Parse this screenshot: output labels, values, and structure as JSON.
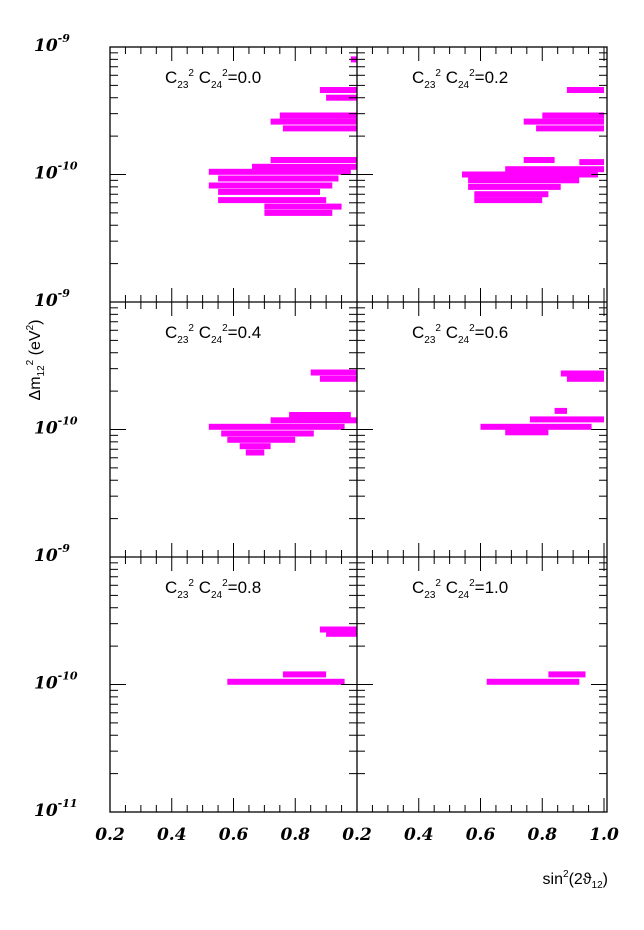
{
  "chart_data": {
    "type": "scatter",
    "layout": "3 rows x 2 columns of panels",
    "xlabel_parts": {
      "base": "sin",
      "sup": "2",
      "mid": "(2ϑ",
      "sub": "12",
      "end": ")"
    },
    "ylabel_parts": {
      "base": "Δm",
      "sub": "12",
      "sup": "2",
      "mid": " (eV",
      "sup2": "2",
      "end": ")"
    },
    "xlim": [
      0.2,
      1.0
    ],
    "ylim": [
      1e-11,
      1e-09
    ],
    "yscale": "log",
    "x_tick_labels": [
      "0.2",
      "0.4",
      "0.6",
      "0.8",
      "0.2",
      "0.4",
      "0.6",
      "0.8",
      "1.0"
    ],
    "y_tick_labels": [
      {
        "base": "10",
        "exp": "-9"
      },
      {
        "base": "10",
        "exp": "-10"
      },
      {
        "base": "10",
        "exp": "-9"
      },
      {
        "base": "10",
        "exp": "-10"
      },
      {
        "base": "10",
        "exp": "-9"
      },
      {
        "base": "10",
        "exp": "-10"
      },
      {
        "base": "10",
        "exp": "-11"
      }
    ],
    "region_color": "#ff00ff",
    "panels": [
      {
        "label": {
          "c1": "C",
          "s1": "23",
          "e1": "2",
          "c2": " C",
          "s2": "24",
          "e2": "2",
          "val": "=0.0"
        },
        "bands": [
          {
            "x": [
              0.98,
              1.0
            ],
            "y": 8e-10
          },
          {
            "x": [
              0.88,
              1.0
            ],
            "y": 4.6e-10
          },
          {
            "x": [
              0.9,
              1.0
            ],
            "y": 4e-10
          },
          {
            "x": [
              0.75,
              1.0
            ],
            "y": 2.9e-10
          },
          {
            "x": [
              0.72,
              1.0
            ],
            "y": 2.6e-10
          },
          {
            "x": [
              0.76,
              1.0
            ],
            "y": 2.3e-10
          },
          {
            "x": [
              0.72,
              1.0
            ],
            "y": 1.3e-10
          },
          {
            "x": [
              0.66,
              1.0
            ],
            "y": 1.15e-10
          },
          {
            "x": [
              0.52,
              0.98
            ],
            "y": 1.05e-10
          },
          {
            "x": [
              0.55,
              0.94
            ],
            "y": 9.3e-11
          },
          {
            "x": [
              0.52,
              0.92
            ],
            "y": 8.2e-11
          },
          {
            "x": [
              0.55,
              0.88
            ],
            "y": 7.3e-11
          },
          {
            "x": [
              0.55,
              0.9
            ],
            "y": 6.3e-11
          },
          {
            "x": [
              0.7,
              0.95
            ],
            "y": 5.6e-11
          },
          {
            "x": [
              0.7,
              0.92
            ],
            "y": 5e-11
          }
        ]
      },
      {
        "label": {
          "c1": "C",
          "s1": "23",
          "e1": "2",
          "c2": " C",
          "s2": "24",
          "e2": "2",
          "val": "=0.2"
        },
        "bands": [
          {
            "x": [
              0.88,
              1.0
            ],
            "y": 4.6e-10
          },
          {
            "x": [
              0.8,
              1.0
            ],
            "y": 2.9e-10
          },
          {
            "x": [
              0.74,
              1.0
            ],
            "y": 2.6e-10
          },
          {
            "x": [
              0.78,
              1.0
            ],
            "y": 2.3e-10
          },
          {
            "x": [
              0.74,
              0.84
            ],
            "y": 1.3e-10
          },
          {
            "x": [
              0.92,
              1.0
            ],
            "y": 1.25e-10
          },
          {
            "x": [
              0.68,
              1.0
            ],
            "y": 1.1e-10
          },
          {
            "x": [
              0.54,
              0.98
            ],
            "y": 1e-10
          },
          {
            "x": [
              0.56,
              0.92
            ],
            "y": 9e-11
          },
          {
            "x": [
              0.56,
              0.86
            ],
            "y": 8e-11
          },
          {
            "x": [
              0.58,
              0.82
            ],
            "y": 7e-11
          },
          {
            "x": [
              0.58,
              0.8
            ],
            "y": 6.3e-11
          }
        ]
      },
      {
        "label": {
          "c1": "C",
          "s1": "23",
          "e1": "2",
          "c2": " C",
          "s2": "24",
          "e2": "2",
          "val": "=0.4"
        },
        "bands": [
          {
            "x": [
              0.85,
              1.0
            ],
            "y": 2.8e-10
          },
          {
            "x": [
              0.88,
              1.0
            ],
            "y": 2.5e-10
          },
          {
            "x": [
              0.78,
              0.98
            ],
            "y": 1.3e-10
          },
          {
            "x": [
              0.72,
              1.0
            ],
            "y": 1.18e-10
          },
          {
            "x": [
              0.52,
              0.96
            ],
            "y": 1.05e-10
          },
          {
            "x": [
              0.56,
              0.86
            ],
            "y": 9.3e-11
          },
          {
            "x": [
              0.58,
              0.8
            ],
            "y": 8.3e-11
          },
          {
            "x": [
              0.62,
              0.72
            ],
            "y": 7.4e-11
          },
          {
            "x": [
              0.64,
              0.7
            ],
            "y": 6.6e-11
          }
        ]
      },
      {
        "label": {
          "c1": "C",
          "s1": "23",
          "e1": "2",
          "c2": " C",
          "s2": "24",
          "e2": "2",
          "val": "=0.6"
        },
        "bands": [
          {
            "x": [
              0.86,
              1.0
            ],
            "y": 2.75e-10
          },
          {
            "x": [
              0.88,
              1.0
            ],
            "y": 2.5e-10
          },
          {
            "x": [
              0.84,
              0.88
            ],
            "y": 1.4e-10
          },
          {
            "x": [
              0.76,
              1.0
            ],
            "y": 1.2e-10
          },
          {
            "x": [
              0.6,
              0.96
            ],
            "y": 1.05e-10
          },
          {
            "x": [
              0.68,
              0.82
            ],
            "y": 9.5e-11
          }
        ]
      },
      {
        "label": {
          "c1": "C",
          "s1": "23",
          "e1": "2",
          "c2": " C",
          "s2": "24",
          "e2": "2",
          "val": "=0.8"
        },
        "bands": [
          {
            "x": [
              0.88,
              1.0
            ],
            "y": 2.7e-10
          },
          {
            "x": [
              0.9,
              1.0
            ],
            "y": 2.5e-10
          },
          {
            "x": [
              0.76,
              0.9
            ],
            "y": 1.2e-10
          },
          {
            "x": [
              0.58,
              0.96
            ],
            "y": 1.05e-10
          }
        ]
      },
      {
        "label": {
          "c1": "C",
          "s1": "23",
          "e1": "2",
          "c2": " C",
          "s2": "24",
          "e2": "2",
          "val": "=1.0"
        },
        "bands": [
          {
            "x": [
              0.82,
              0.94
            ],
            "y": 1.2e-10
          },
          {
            "x": [
              0.62,
              0.92
            ],
            "y": 1.05e-10
          }
        ]
      }
    ]
  }
}
